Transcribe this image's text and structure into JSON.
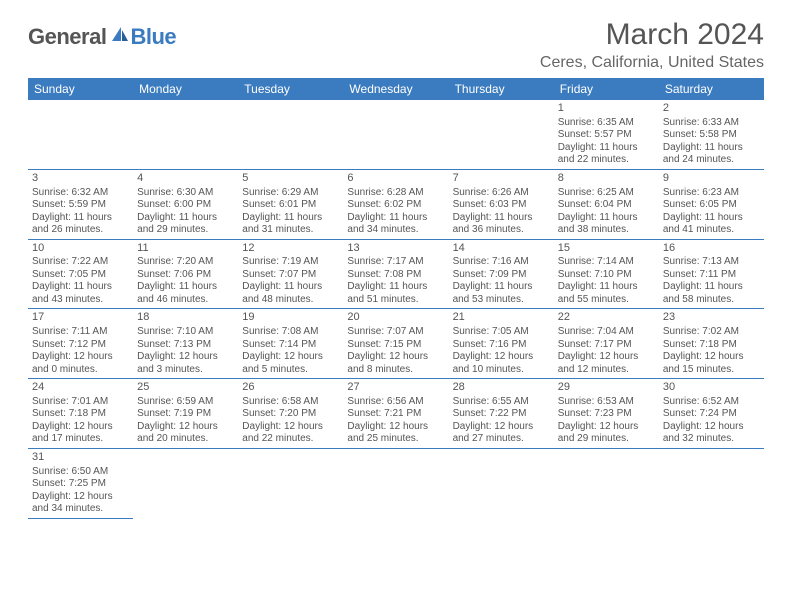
{
  "logo": {
    "word1": "General",
    "word2": "Blue"
  },
  "title": "March 2024",
  "location": "Ceres, California, United States",
  "weekdays": [
    "Sunday",
    "Monday",
    "Tuesday",
    "Wednesday",
    "Thursday",
    "Friday",
    "Saturday"
  ],
  "colors": {
    "header_bg": "#3b7bbf",
    "header_fg": "#ffffff",
    "rule": "#3b7bbf",
    "text": "#555555"
  },
  "weeks": [
    [
      null,
      null,
      null,
      null,
      null,
      {
        "n": "1",
        "sr": "Sunrise: 6:35 AM",
        "ss": "Sunset: 5:57 PM",
        "d1": "Daylight: 11 hours",
        "d2": "and 22 minutes."
      },
      {
        "n": "2",
        "sr": "Sunrise: 6:33 AM",
        "ss": "Sunset: 5:58 PM",
        "d1": "Daylight: 11 hours",
        "d2": "and 24 minutes."
      }
    ],
    [
      {
        "n": "3",
        "sr": "Sunrise: 6:32 AM",
        "ss": "Sunset: 5:59 PM",
        "d1": "Daylight: 11 hours",
        "d2": "and 26 minutes."
      },
      {
        "n": "4",
        "sr": "Sunrise: 6:30 AM",
        "ss": "Sunset: 6:00 PM",
        "d1": "Daylight: 11 hours",
        "d2": "and 29 minutes."
      },
      {
        "n": "5",
        "sr": "Sunrise: 6:29 AM",
        "ss": "Sunset: 6:01 PM",
        "d1": "Daylight: 11 hours",
        "d2": "and 31 minutes."
      },
      {
        "n": "6",
        "sr": "Sunrise: 6:28 AM",
        "ss": "Sunset: 6:02 PM",
        "d1": "Daylight: 11 hours",
        "d2": "and 34 minutes."
      },
      {
        "n": "7",
        "sr": "Sunrise: 6:26 AM",
        "ss": "Sunset: 6:03 PM",
        "d1": "Daylight: 11 hours",
        "d2": "and 36 minutes."
      },
      {
        "n": "8",
        "sr": "Sunrise: 6:25 AM",
        "ss": "Sunset: 6:04 PM",
        "d1": "Daylight: 11 hours",
        "d2": "and 38 minutes."
      },
      {
        "n": "9",
        "sr": "Sunrise: 6:23 AM",
        "ss": "Sunset: 6:05 PM",
        "d1": "Daylight: 11 hours",
        "d2": "and 41 minutes."
      }
    ],
    [
      {
        "n": "10",
        "sr": "Sunrise: 7:22 AM",
        "ss": "Sunset: 7:05 PM",
        "d1": "Daylight: 11 hours",
        "d2": "and 43 minutes."
      },
      {
        "n": "11",
        "sr": "Sunrise: 7:20 AM",
        "ss": "Sunset: 7:06 PM",
        "d1": "Daylight: 11 hours",
        "d2": "and 46 minutes."
      },
      {
        "n": "12",
        "sr": "Sunrise: 7:19 AM",
        "ss": "Sunset: 7:07 PM",
        "d1": "Daylight: 11 hours",
        "d2": "and 48 minutes."
      },
      {
        "n": "13",
        "sr": "Sunrise: 7:17 AM",
        "ss": "Sunset: 7:08 PM",
        "d1": "Daylight: 11 hours",
        "d2": "and 51 minutes."
      },
      {
        "n": "14",
        "sr": "Sunrise: 7:16 AM",
        "ss": "Sunset: 7:09 PM",
        "d1": "Daylight: 11 hours",
        "d2": "and 53 minutes."
      },
      {
        "n": "15",
        "sr": "Sunrise: 7:14 AM",
        "ss": "Sunset: 7:10 PM",
        "d1": "Daylight: 11 hours",
        "d2": "and 55 minutes."
      },
      {
        "n": "16",
        "sr": "Sunrise: 7:13 AM",
        "ss": "Sunset: 7:11 PM",
        "d1": "Daylight: 11 hours",
        "d2": "and 58 minutes."
      }
    ],
    [
      {
        "n": "17",
        "sr": "Sunrise: 7:11 AM",
        "ss": "Sunset: 7:12 PM",
        "d1": "Daylight: 12 hours",
        "d2": "and 0 minutes."
      },
      {
        "n": "18",
        "sr": "Sunrise: 7:10 AM",
        "ss": "Sunset: 7:13 PM",
        "d1": "Daylight: 12 hours",
        "d2": "and 3 minutes."
      },
      {
        "n": "19",
        "sr": "Sunrise: 7:08 AM",
        "ss": "Sunset: 7:14 PM",
        "d1": "Daylight: 12 hours",
        "d2": "and 5 minutes."
      },
      {
        "n": "20",
        "sr": "Sunrise: 7:07 AM",
        "ss": "Sunset: 7:15 PM",
        "d1": "Daylight: 12 hours",
        "d2": "and 8 minutes."
      },
      {
        "n": "21",
        "sr": "Sunrise: 7:05 AM",
        "ss": "Sunset: 7:16 PM",
        "d1": "Daylight: 12 hours",
        "d2": "and 10 minutes."
      },
      {
        "n": "22",
        "sr": "Sunrise: 7:04 AM",
        "ss": "Sunset: 7:17 PM",
        "d1": "Daylight: 12 hours",
        "d2": "and 12 minutes."
      },
      {
        "n": "23",
        "sr": "Sunrise: 7:02 AM",
        "ss": "Sunset: 7:18 PM",
        "d1": "Daylight: 12 hours",
        "d2": "and 15 minutes."
      }
    ],
    [
      {
        "n": "24",
        "sr": "Sunrise: 7:01 AM",
        "ss": "Sunset: 7:18 PM",
        "d1": "Daylight: 12 hours",
        "d2": "and 17 minutes."
      },
      {
        "n": "25",
        "sr": "Sunrise: 6:59 AM",
        "ss": "Sunset: 7:19 PM",
        "d1": "Daylight: 12 hours",
        "d2": "and 20 minutes."
      },
      {
        "n": "26",
        "sr": "Sunrise: 6:58 AM",
        "ss": "Sunset: 7:20 PM",
        "d1": "Daylight: 12 hours",
        "d2": "and 22 minutes."
      },
      {
        "n": "27",
        "sr": "Sunrise: 6:56 AM",
        "ss": "Sunset: 7:21 PM",
        "d1": "Daylight: 12 hours",
        "d2": "and 25 minutes."
      },
      {
        "n": "28",
        "sr": "Sunrise: 6:55 AM",
        "ss": "Sunset: 7:22 PM",
        "d1": "Daylight: 12 hours",
        "d2": "and 27 minutes."
      },
      {
        "n": "29",
        "sr": "Sunrise: 6:53 AM",
        "ss": "Sunset: 7:23 PM",
        "d1": "Daylight: 12 hours",
        "d2": "and 29 minutes."
      },
      {
        "n": "30",
        "sr": "Sunrise: 6:52 AM",
        "ss": "Sunset: 7:24 PM",
        "d1": "Daylight: 12 hours",
        "d2": "and 32 minutes."
      }
    ],
    [
      {
        "n": "31",
        "sr": "Sunrise: 6:50 AM",
        "ss": "Sunset: 7:25 PM",
        "d1": "Daylight: 12 hours",
        "d2": "and 34 minutes."
      },
      null,
      null,
      null,
      null,
      null,
      null
    ]
  ]
}
